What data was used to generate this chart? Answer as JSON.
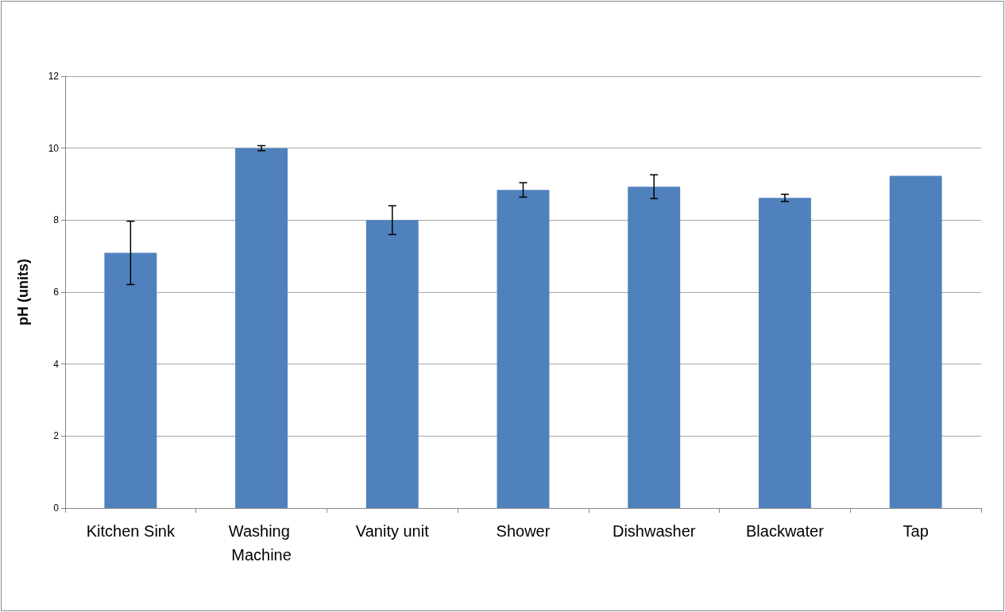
{
  "chart_data": {
    "type": "bar",
    "ylabel": "pH (units)",
    "categories": [
      "Kitchen Sink",
      "Washing Machine",
      "Vanity unit",
      "Shower",
      "Dishwasher",
      "Blackwater",
      "Tap"
    ],
    "values": [
      7.09,
      10.0,
      8.0,
      8.84,
      8.93,
      8.62,
      9.23
    ],
    "errors": [
      0.88,
      0.07,
      0.4,
      0.2,
      0.33,
      0.1,
      null
    ],
    "color": "#4f81bd",
    "ylim": [
      0,
      12
    ],
    "yticks": [
      0,
      2,
      4,
      6,
      8,
      10,
      12
    ],
    "grid": "y"
  }
}
